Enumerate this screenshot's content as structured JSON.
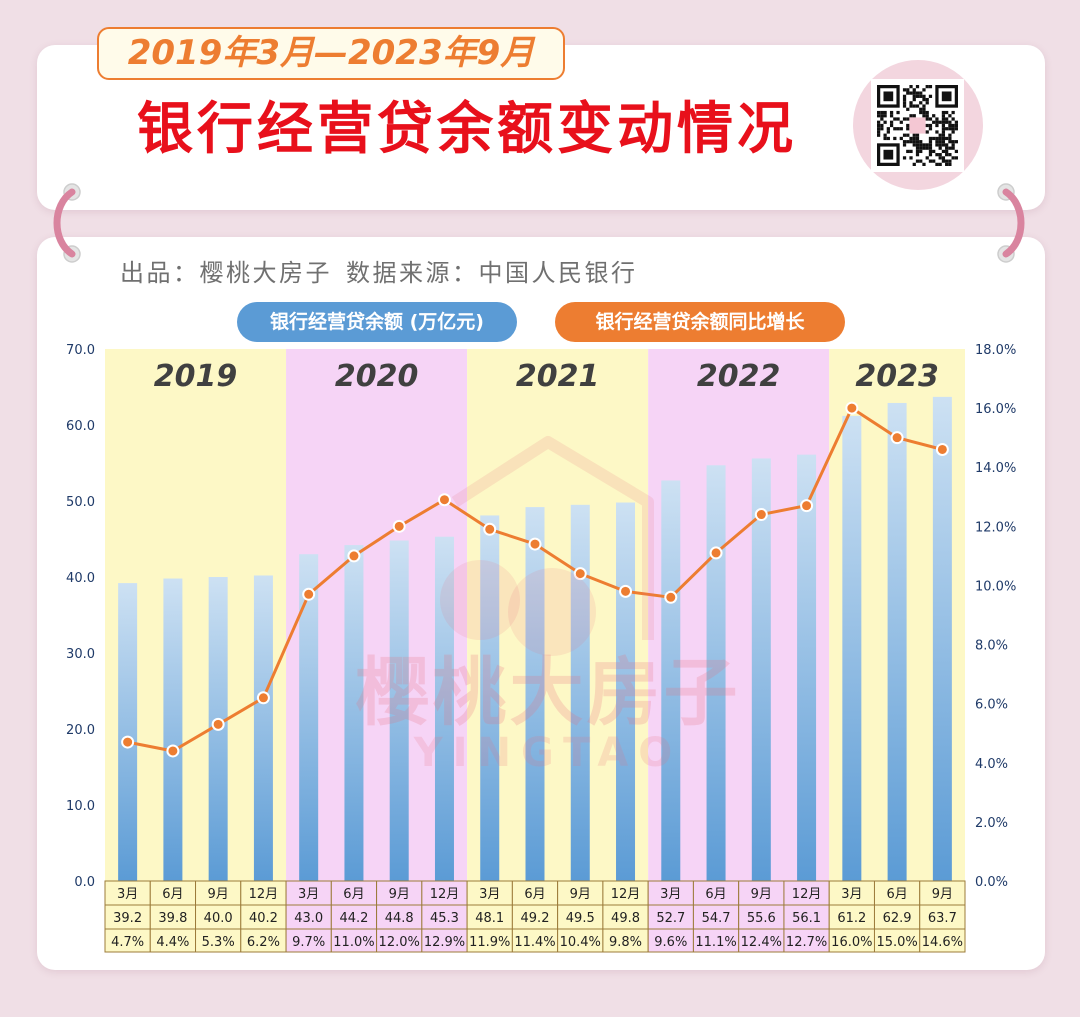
{
  "header": {
    "date_range": "2019年3月—2023年9月",
    "title": "银行经营贷余额变动情况"
  },
  "source": {
    "credit": "出品：樱桃大房子",
    "data_source": "数据来源：中国人民银行"
  },
  "watermark": {
    "cn": "樱桃大房子",
    "en": "YINGTAO"
  },
  "colors": {
    "title": "#e8101b",
    "accent_orange": "#ed7d31",
    "legend_blue": "#5b9bd5",
    "bar_top": "#cde1f3",
    "bar_bottom": "#5b9bd5",
    "band_yellow": "#fdf8c6",
    "band_pink": "#f6d4f6",
    "table_border": "#9c7b3a",
    "background": "#f0dfe6"
  },
  "chart_data": {
    "type": "bar",
    "periods": [
      {
        "year": "2019",
        "band": "yellow",
        "months": [
          "3月",
          "6月",
          "9月",
          "12月"
        ]
      },
      {
        "year": "2020",
        "band": "pink",
        "months": [
          "3月",
          "6月",
          "9月",
          "12月"
        ]
      },
      {
        "year": "2021",
        "band": "yellow",
        "months": [
          "3月",
          "6月",
          "9月",
          "12月"
        ]
      },
      {
        "year": "2022",
        "band": "pink",
        "months": [
          "3月",
          "6月",
          "9月",
          "12月"
        ]
      },
      {
        "year": "2023",
        "band": "yellow",
        "months": [
          "3月",
          "6月",
          "9月"
        ]
      }
    ],
    "series": [
      {
        "name": "银行经营贷余额 (万亿元)",
        "type": "bar",
        "axis": "left",
        "values": [
          39.2,
          39.8,
          40.0,
          40.2,
          43.0,
          44.2,
          44.8,
          45.3,
          48.1,
          49.2,
          49.5,
          49.8,
          52.7,
          54.7,
          55.6,
          56.1,
          61.2,
          62.9,
          63.7
        ]
      },
      {
        "name": "银行经营贷余额同比增长",
        "type": "line",
        "axis": "right",
        "unit": "%",
        "values": [
          4.7,
          4.4,
          5.3,
          6.2,
          9.7,
          11.0,
          12.0,
          12.9,
          11.9,
          11.4,
          10.4,
          9.8,
          9.6,
          11.1,
          12.4,
          12.7,
          16.0,
          15.0,
          14.6
        ]
      }
    ],
    "y_left": {
      "range": [
        0,
        70
      ],
      "ticks": [
        "0.0",
        "10.0",
        "20.0",
        "30.0",
        "40.0",
        "50.0",
        "60.0",
        "70.0"
      ]
    },
    "y_right": {
      "range": [
        0,
        18
      ],
      "ticks": [
        "0.0%",
        "2.0%",
        "4.0%",
        "6.0%",
        "8.0%",
        "10.0%",
        "12.0%",
        "14.0%",
        "16.0%",
        "18.0%"
      ]
    },
    "legend_position": "top",
    "grid": false
  }
}
